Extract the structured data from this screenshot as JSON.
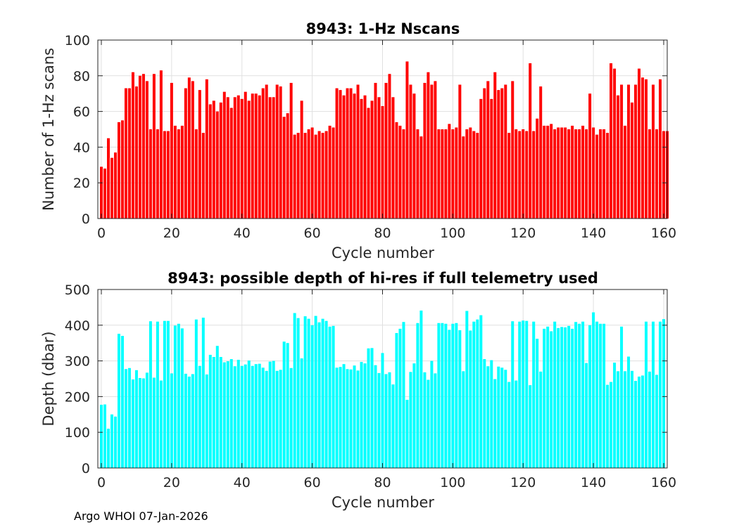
{
  "chart_data": [
    {
      "type": "bar",
      "title": "8943: 1-Hz Nscans",
      "xlabel": "Cycle number",
      "ylabel": "Number of 1-Hz scans",
      "xlim": [
        -1,
        161
      ],
      "ylim": [
        0,
        100
      ],
      "xticks": [
        0,
        20,
        40,
        60,
        80,
        100,
        120,
        140,
        160
      ],
      "yticks": [
        0,
        20,
        40,
        60,
        80,
        100
      ],
      "grid": true,
      "bar_color": "#ff0000",
      "x_start": 0,
      "values": [
        29,
        28,
        45,
        34,
        37,
        54,
        55,
        73,
        73,
        82,
        74,
        80,
        81,
        77,
        50,
        81,
        50,
        83,
        49,
        49,
        76,
        52,
        50,
        52,
        73,
        79,
        77,
        50,
        72,
        48,
        78,
        64,
        66,
        60,
        65,
        71,
        68,
        62,
        68,
        69,
        67,
        71,
        66,
        70,
        70,
        69,
        73,
        75,
        68,
        68,
        75,
        74,
        57,
        59,
        76,
        47,
        48,
        66,
        48,
        50,
        51,
        47,
        49,
        48,
        49,
        52,
        51,
        73,
        72,
        69,
        73,
        73,
        70,
        75,
        67,
        69,
        62,
        66,
        76,
        68,
        63,
        76,
        81,
        68,
        54,
        52,
        50,
        88,
        75,
        70,
        50,
        46,
        76,
        82,
        75,
        77,
        50,
        50,
        50,
        53,
        50,
        51,
        75,
        46,
        50,
        51,
        49,
        48,
        67,
        73,
        77,
        67,
        82,
        72,
        73,
        75,
        48,
        77,
        50,
        49,
        50,
        49,
        87,
        49,
        56,
        74,
        52,
        52,
        53,
        50,
        51,
        51,
        51,
        50,
        52,
        50,
        50,
        52,
        50,
        70,
        51,
        47,
        50,
        50,
        48,
        87,
        84,
        69,
        75,
        52,
        75,
        65,
        75,
        84,
        79,
        78,
        50,
        75,
        50,
        78,
        49,
        49
      ]
    },
    {
      "type": "bar",
      "title": "8943: possible depth of hi-res if full telemetry used",
      "xlabel": "Cycle number",
      "ylabel": "Depth (dbar)",
      "xlim": [
        -1,
        161
      ],
      "ylim": [
        0,
        500
      ],
      "xticks": [
        0,
        20,
        40,
        60,
        80,
        100,
        120,
        140,
        160
      ],
      "yticks": [
        0,
        100,
        200,
        300,
        400,
        500
      ],
      "grid": true,
      "bar_color": "#00ffff",
      "x_start": 0,
      "values": [
        177,
        178,
        110,
        150,
        144,
        376,
        370,
        277,
        280,
        248,
        274,
        252,
        251,
        267,
        411,
        253,
        410,
        245,
        412,
        412,
        265,
        399,
        404,
        391,
        264,
        256,
        263,
        416,
        286,
        421,
        262,
        317,
        311,
        342,
        311,
        296,
        299,
        305,
        285,
        303,
        286,
        290,
        301,
        286,
        291,
        292,
        281,
        272,
        298,
        300,
        272,
        275,
        354,
        350,
        280,
        434,
        420,
        307,
        425,
        418,
        400,
        426,
        408,
        418,
        412,
        396,
        398,
        281,
        283,
        291,
        277,
        276,
        287,
        273,
        297,
        293,
        335,
        336,
        288,
        266,
        322,
        263,
        268,
        234,
        378,
        390,
        409,
        191,
        269,
        293,
        406,
        441,
        268,
        247,
        300,
        265,
        406,
        406,
        404,
        387,
        404,
        406,
        386,
        271,
        440,
        385,
        410,
        416,
        428,
        305,
        285,
        302,
        249,
        284,
        281,
        275,
        241,
        411,
        245,
        410,
        413,
        412,
        232,
        410,
        362,
        270,
        390,
        396,
        383,
        410,
        392,
        395,
        394,
        398,
        390,
        409,
        404,
        410,
        294,
        400,
        436,
        410,
        404,
        404,
        233,
        241,
        295,
        271,
        396,
        271,
        312,
        272,
        244,
        256,
        259,
        410,
        270,
        410,
        261,
        410,
        417
      ]
    }
  ],
  "footer": "Argo WHOI 07-Jan-2026",
  "colors": {
    "grid": "#e0e0e0",
    "axis": "#262626",
    "plot_bg": "#ffffff"
  }
}
